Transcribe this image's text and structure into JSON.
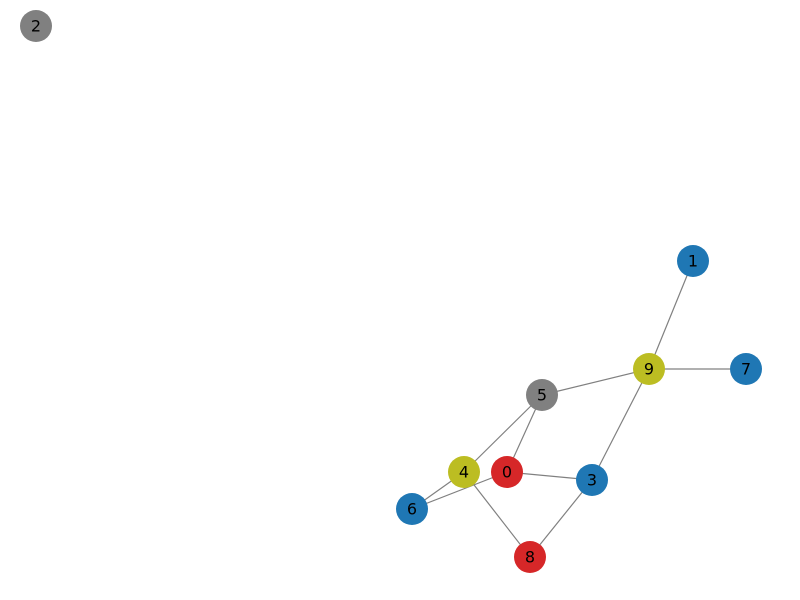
{
  "graph": {
    "nodes": [
      {
        "id": "0",
        "label": "0",
        "color": "#d62728"
      },
      {
        "id": "1",
        "label": "1",
        "color": "#1f77b4"
      },
      {
        "id": "2",
        "label": "2",
        "color": "#808080"
      },
      {
        "id": "3",
        "label": "3",
        "color": "#1f77b4"
      },
      {
        "id": "4",
        "label": "4",
        "color": "#bcbd22"
      },
      {
        "id": "5",
        "label": "5",
        "color": "#808080"
      },
      {
        "id": "6",
        "label": "6",
        "color": "#1f77b4"
      },
      {
        "id": "7",
        "label": "7",
        "color": "#1f77b4"
      },
      {
        "id": "8",
        "label": "8",
        "color": "#d62728"
      },
      {
        "id": "9",
        "label": "9",
        "color": "#bcbd22"
      }
    ],
    "edges": [
      [
        "1",
        "9"
      ],
      [
        "9",
        "7"
      ],
      [
        "9",
        "5"
      ],
      [
        "9",
        "3"
      ],
      [
        "5",
        "4"
      ],
      [
        "5",
        "0"
      ],
      [
        "0",
        "3"
      ],
      [
        "0",
        "6"
      ],
      [
        "4",
        "6"
      ],
      [
        "4",
        "8"
      ],
      [
        "8",
        "3"
      ]
    ],
    "edge_color": "#808080"
  }
}
